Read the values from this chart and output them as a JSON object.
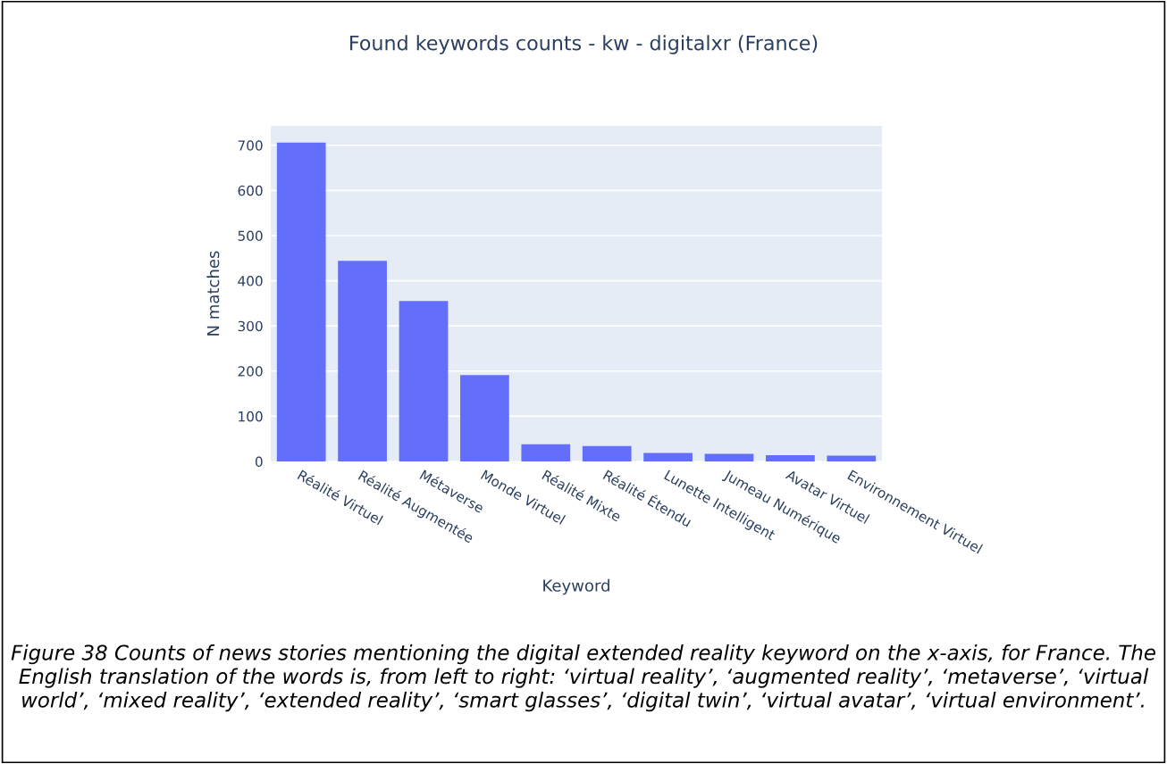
{
  "chart_data": {
    "type": "bar",
    "title": "Found keywords counts - kw - digitalxr (France)",
    "xlabel": "Keyword",
    "ylabel": "N matches",
    "categories": [
      "Réalité Virtuel",
      "Réalité Augmentée",
      "Métaverse",
      "Monde Virtuel",
      "Réalité Mixte",
      "Réalité Étendu",
      "Lunette Intelligent",
      "Jumeau Numérique",
      "Avatar Virtuel",
      "Environnement Virtuel"
    ],
    "values": [
      706,
      444,
      355,
      191,
      38,
      34,
      19,
      17,
      14,
      13
    ],
    "color": "#636efa",
    "ylim": [
      0,
      743
    ],
    "yticks": [
      0,
      100,
      200,
      300,
      400,
      500,
      600,
      700
    ],
    "grid": "y",
    "annotations": [
      "Figure 38 Counts of news stories mentioning the digital extended reality keyword on the x-axis, for France. The English translation of the words is, from left to right: ‘virtual reality’, ‘augmented reality’, ‘metaverse’, ‘virtual world’, ‘mixed reality’, ‘extended reality’, ‘smart glasses’, ‘digital twin’, ‘virtual avatar’, ‘virtual environment’."
    ]
  }
}
